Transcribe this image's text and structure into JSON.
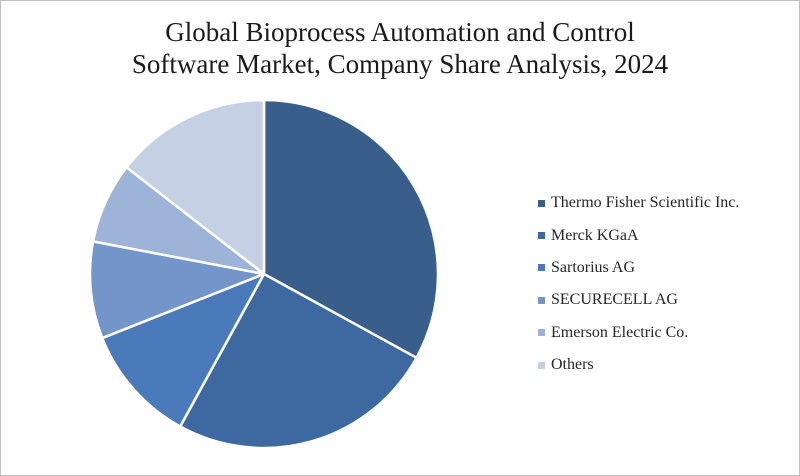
{
  "chart_data": {
    "type": "pie",
    "title_lines": [
      "Global Bioprocess Automation and Control",
      "Software Market, Company Share Analysis, 2024"
    ],
    "slices": [
      {
        "name": "Thermo Fisher Scientific Inc.",
        "value": 33,
        "color": "#3a5e8c"
      },
      {
        "name": "Merck KGaA",
        "value": 25,
        "color": "#3e68a0"
      },
      {
        "name": "Sartorius AG",
        "value": 11,
        "color": "#4b7abb"
      },
      {
        "name": "SECURECELL AG",
        "value": 9,
        "color": "#7395c9"
      },
      {
        "name": "Emerson Electric Co.",
        "value": 7.5,
        "color": "#9db3d8"
      },
      {
        "name": "Others",
        "value": 14.5,
        "color": "#c5d0e4"
      }
    ],
    "legend_position": "right"
  }
}
